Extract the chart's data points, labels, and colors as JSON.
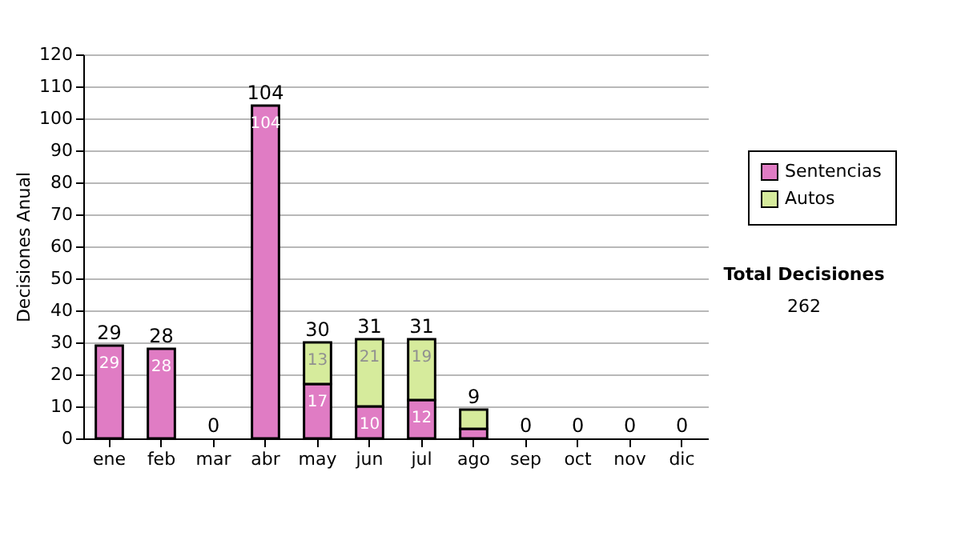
{
  "chart_data": {
    "type": "bar",
    "stacked": true,
    "ylabel": "Decisiones Anual",
    "categories": [
      "ene",
      "feb",
      "mar",
      "abr",
      "may",
      "jun",
      "jul",
      "ago",
      "sep",
      "oct",
      "nov",
      "dic"
    ],
    "series": [
      {
        "name": "Sentencias",
        "color": "#e07cc4",
        "values": [
          29,
          28,
          0,
          104,
          17,
          10,
          12,
          3,
          0,
          0,
          0,
          0
        ],
        "value_labels": [
          "29",
          "28",
          null,
          "104",
          "17",
          "10",
          "12",
          null,
          null,
          null,
          null,
          null
        ]
      },
      {
        "name": "Autos",
        "color": "#d6eb9c",
        "values": [
          0,
          0,
          0,
          0,
          13,
          21,
          19,
          6,
          0,
          0,
          0,
          0
        ],
        "value_labels": [
          null,
          null,
          null,
          null,
          "13",
          "21",
          "19",
          null,
          null,
          null,
          null,
          null
        ]
      }
    ],
    "totals": [
      "29",
      "28",
      "0",
      "104",
      "30",
      "31",
      "31",
      "9",
      "0",
      "0",
      "0",
      "0"
    ],
    "ylim": [
      0,
      120
    ],
    "yticks": [
      0,
      10,
      20,
      30,
      40,
      50,
      60,
      70,
      80,
      90,
      100,
      110,
      120
    ],
    "grid": "y",
    "legend": "right",
    "annotations": [
      "Total Decisiones",
      "262"
    ]
  }
}
